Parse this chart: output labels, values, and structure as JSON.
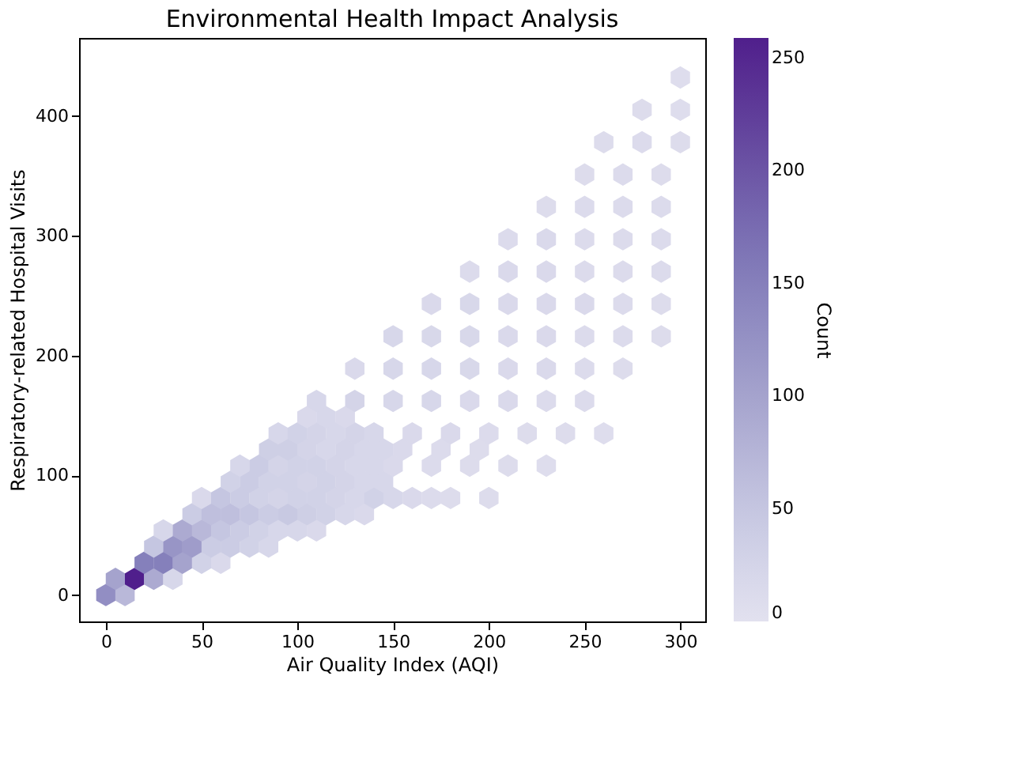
{
  "chart_data": {
    "type": "scatter",
    "title": "Environmental Health Impact Analysis",
    "xlabel": "Air Quality Index (AQI)",
    "ylabel": "Respiratory-related Hospital Visits",
    "clabel": "Count",
    "x": [
      0,
      10,
      5,
      15,
      25,
      35,
      20,
      30,
      40,
      50,
      60,
      25,
      35,
      45,
      55,
      65,
      75,
      85,
      30,
      40,
      50,
      60,
      70,
      80,
      90,
      100,
      110,
      45,
      55,
      65,
      75,
      85,
      95,
      105,
      115,
      125,
      135,
      50,
      60,
      70,
      80,
      90,
      100,
      110,
      120,
      130,
      140,
      150,
      160,
      170,
      180,
      200,
      65,
      75,
      85,
      95,
      105,
      115,
      125,
      135,
      145,
      70,
      80,
      90,
      100,
      110,
      120,
      130,
      140,
      150,
      170,
      190,
      210,
      230,
      85,
      95,
      105,
      115,
      125,
      135,
      145,
      155,
      175,
      195,
      90,
      100,
      110,
      120,
      130,
      140,
      160,
      180,
      200,
      220,
      240,
      260,
      105,
      115,
      125,
      110,
      130,
      150,
      170,
      190,
      210,
      230,
      250,
      130,
      150,
      170,
      190,
      210,
      230,
      250,
      270,
      150,
      170,
      190,
      210,
      230,
      250,
      270,
      290,
      170,
      190,
      210,
      230,
      250,
      270,
      290,
      190,
      210,
      230,
      250,
      270,
      290,
      210,
      230,
      250,
      270,
      290,
      230,
      250,
      270,
      290,
      250,
      270,
      290,
      260,
      280,
      300,
      280,
      300,
      300
    ],
    "values": [
      0,
      0,
      13.5,
      13.5,
      13.5,
      13.5,
      27,
      27,
      27,
      27,
      27,
      40.5,
      40.5,
      40.5,
      40.5,
      40.5,
      40.5,
      40.5,
      54,
      54,
      54,
      54,
      54,
      54,
      54,
      54,
      54,
      67.5,
      67.5,
      67.5,
      67.5,
      67.5,
      67.5,
      67.5,
      67.5,
      67.5,
      67.5,
      81,
      81,
      81,
      81,
      81,
      81,
      81,
      81,
      81,
      81,
      81,
      81,
      81,
      81,
      81,
      94.5,
      94.5,
      94.5,
      94.5,
      94.5,
      94.5,
      94.5,
      94.5,
      94.5,
      108,
      108,
      108,
      108,
      108,
      108,
      108,
      108,
      108,
      108,
      108,
      108,
      108,
      121.5,
      121.5,
      121.5,
      121.5,
      121.5,
      121.5,
      121.5,
      121.5,
      121.5,
      121.5,
      135,
      135,
      135,
      135,
      135,
      135,
      135,
      135,
      135,
      135,
      135,
      135,
      148.5,
      148.5,
      148.5,
      162,
      162,
      162,
      162,
      162,
      162,
      162,
      162,
      189,
      189,
      189,
      189,
      189,
      189,
      189,
      189,
      216,
      216,
      216,
      216,
      216,
      216,
      216,
      216,
      243,
      243,
      243,
      243,
      243,
      243,
      243,
      270,
      270,
      270,
      270,
      270,
      270,
      297,
      297,
      297,
      297,
      297,
      324,
      324,
      324,
      324,
      351,
      351,
      351,
      378,
      378,
      378,
      405,
      405,
      432
    ],
    "cvalues": [
      130,
      70,
      100,
      259,
      90,
      20,
      150,
      150,
      100,
      30,
      15,
      50,
      120,
      110,
      40,
      40,
      30,
      20,
      20,
      90,
      70,
      50,
      40,
      30,
      20,
      20,
      15,
      40,
      60,
      60,
      50,
      40,
      45,
      35,
      30,
      20,
      15,
      15,
      50,
      40,
      30,
      25,
      30,
      30,
      25,
      20,
      30,
      20,
      15,
      12,
      10,
      10,
      30,
      40,
      30,
      30,
      25,
      30,
      25,
      20,
      20,
      20,
      40,
      25,
      30,
      30,
      25,
      20,
      20,
      15,
      12,
      10,
      10,
      8,
      35,
      35,
      25,
      20,
      25,
      20,
      20,
      15,
      12,
      10,
      20,
      30,
      25,
      20,
      25,
      20,
      15,
      15,
      12,
      10,
      10,
      8,
      15,
      20,
      15,
      20,
      25,
      20,
      20,
      15,
      15,
      12,
      12,
      15,
      20,
      20,
      18,
      15,
      15,
      12,
      10,
      20,
      18,
      18,
      15,
      15,
      12,
      12,
      10,
      15,
      18,
      15,
      15,
      15,
      12,
      10,
      12,
      15,
      15,
      12,
      12,
      12,
      12,
      15,
      12,
      12,
      12,
      10,
      12,
      12,
      12,
      10,
      12,
      10,
      10,
      12,
      10,
      10,
      8,
      8
    ],
    "xlim": [
      -14,
      313
    ],
    "ylim": [
      -22,
      465
    ],
    "xticks": [
      0,
      50,
      100,
      150,
      200,
      250,
      300
    ],
    "yticks": [
      0,
      100,
      200,
      300,
      400
    ],
    "clim": [
      0,
      259
    ],
    "cticks": [
      0,
      50,
      100,
      150,
      200,
      250
    ],
    "grid": false
  }
}
